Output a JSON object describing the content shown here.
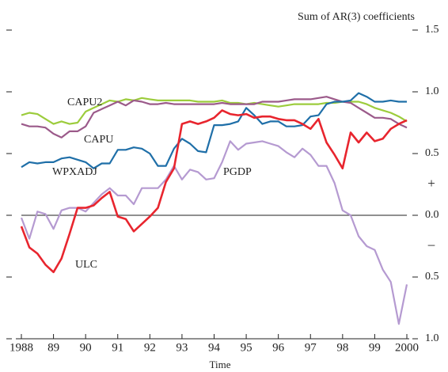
{
  "chart_data": {
    "type": "line",
    "y_label": "Sum of AR(3) coefficients",
    "x_label": "Time",
    "sign_labels": [
      "+",
      "–"
    ],
    "x": [
      1988,
      1988.25,
      1988.5,
      1988.75,
      1989,
      1989.25,
      1989.5,
      1989.75,
      1990,
      1990.25,
      1990.5,
      1990.75,
      1991,
      1991.25,
      1991.5,
      1991.75,
      1992,
      1992.25,
      1992.5,
      1992.75,
      1993,
      1993.25,
      1993.5,
      1993.75,
      1994,
      1994.25,
      1994.5,
      1994.75,
      1995,
      1995.25,
      1995.5,
      1995.75,
      1996,
      1996.25,
      1996.5,
      1996.75,
      1997,
      1997.25,
      1997.5,
      1997.75,
      1998,
      1998.25,
      1998.5,
      1998.75,
      1999,
      1999.25,
      1999.5,
      1999.75,
      2000
    ],
    "series": [
      {
        "name": "CAPU2",
        "color": "#9ccc3c",
        "values": [
          0.81,
          0.83,
          0.82,
          0.78,
          0.74,
          0.76,
          0.74,
          0.75,
          0.84,
          0.87,
          0.9,
          0.93,
          0.92,
          0.94,
          0.93,
          0.95,
          0.94,
          0.93,
          0.93,
          0.93,
          0.93,
          0.93,
          0.92,
          0.92,
          0.92,
          0.93,
          0.91,
          0.91,
          0.9,
          0.91,
          0.9,
          0.89,
          0.88,
          0.89,
          0.9,
          0.9,
          0.9,
          0.9,
          0.91,
          0.91,
          0.92,
          0.92,
          0.92,
          0.9,
          0.87,
          0.85,
          0.83,
          0.8,
          0.76
        ]
      },
      {
        "name": "CAPU",
        "color": "#9b5a8a",
        "values": [
          0.74,
          0.72,
          0.72,
          0.71,
          0.66,
          0.63,
          0.68,
          0.68,
          0.72,
          0.83,
          0.86,
          0.89,
          0.92,
          0.89,
          0.93,
          0.92,
          0.9,
          0.9,
          0.91,
          0.9,
          0.9,
          0.9,
          0.9,
          0.9,
          0.9,
          0.91,
          0.9,
          0.9,
          0.9,
          0.9,
          0.92,
          0.92,
          0.92,
          0.93,
          0.94,
          0.94,
          0.94,
          0.95,
          0.96,
          0.94,
          0.92,
          0.91,
          0.87,
          0.83,
          0.79,
          0.79,
          0.78,
          0.74,
          0.71
        ]
      },
      {
        "name": "WPXADJ",
        "color": "#1f6fa8",
        "values": [
          0.39,
          0.43,
          0.42,
          0.43,
          0.43,
          0.46,
          0.47,
          0.45,
          0.43,
          0.38,
          0.42,
          0.42,
          0.53,
          0.53,
          0.55,
          0.54,
          0.5,
          0.4,
          0.4,
          0.54,
          0.62,
          0.58,
          0.52,
          0.51,
          0.73,
          0.73,
          0.74,
          0.76,
          0.87,
          0.81,
          0.74,
          0.76,
          0.76,
          0.72,
          0.72,
          0.73,
          0.8,
          0.81,
          0.9,
          0.92,
          0.92,
          0.93,
          0.99,
          0.96,
          0.92,
          0.92,
          0.93,
          0.92,
          0.92
        ]
      },
      {
        "name": "PGDP",
        "color": "#b59ad1",
        "values": [
          -0.02,
          -0.19,
          0.03,
          0.01,
          -0.11,
          0.04,
          0.06,
          0.06,
          0.03,
          0.1,
          0.17,
          0.22,
          0.16,
          0.16,
          0.09,
          0.22,
          0.22,
          0.22,
          0.29,
          0.4,
          0.29,
          0.37,
          0.35,
          0.29,
          0.3,
          0.43,
          0.6,
          0.53,
          0.58,
          0.59,
          0.6,
          0.58,
          0.56,
          0.51,
          0.47,
          0.54,
          0.49,
          0.4,
          0.4,
          0.26,
          0.04,
          0.0,
          -0.17,
          -0.25,
          -0.28,
          -0.44,
          -0.54,
          -0.88,
          -0.56
        ]
      },
      {
        "name": "ULC",
        "color": "#e8252e",
        "values": [
          -0.09,
          -0.26,
          -0.31,
          -0.4,
          -0.46,
          -0.35,
          -0.15,
          0.06,
          0.06,
          0.08,
          0.14,
          0.19,
          -0.01,
          -0.03,
          -0.13,
          -0.07,
          -0.01,
          0.06,
          0.27,
          0.38,
          0.74,
          0.76,
          0.74,
          0.76,
          0.79,
          0.85,
          0.82,
          0.81,
          0.82,
          0.79,
          0.8,
          0.8,
          0.78,
          0.77,
          0.77,
          0.74,
          0.7,
          0.78,
          0.59,
          0.49,
          0.38,
          0.67,
          0.59,
          0.67,
          0.6,
          0.62,
          0.7,
          0.74,
          0.77
        ]
      }
    ],
    "xlim": [
      1988,
      2000
    ],
    "xticks": [
      1988,
      {
        "value": 1989,
        "label": "89"
      },
      {
        "value": 1990,
        "label": "90"
      },
      {
        "value": 1991,
        "label": "91"
      },
      {
        "value": 1992,
        "label": "92"
      },
      {
        "value": 1993,
        "label": "93"
      },
      {
        "value": 1994,
        "label": "94"
      },
      {
        "value": 1995,
        "label": "95"
      },
      {
        "value": 1996,
        "label": "96"
      },
      {
        "value": 1997,
        "label": "97"
      },
      {
        "value": 1998,
        "label": "98"
      },
      {
        "value": 1999,
        "label": "99"
      },
      2000
    ],
    "ylim": [
      -1.0,
      1.5
    ],
    "yticks": [
      {
        "value": -1.0,
        "label": "1.0"
      },
      {
        "value": -0.5,
        "label": "0.5"
      },
      {
        "value": 0.0,
        "label": "0.0"
      },
      0.5,
      {
        "value": 1.0,
        "label": "1.0"
      },
      1.5
    ]
  }
}
